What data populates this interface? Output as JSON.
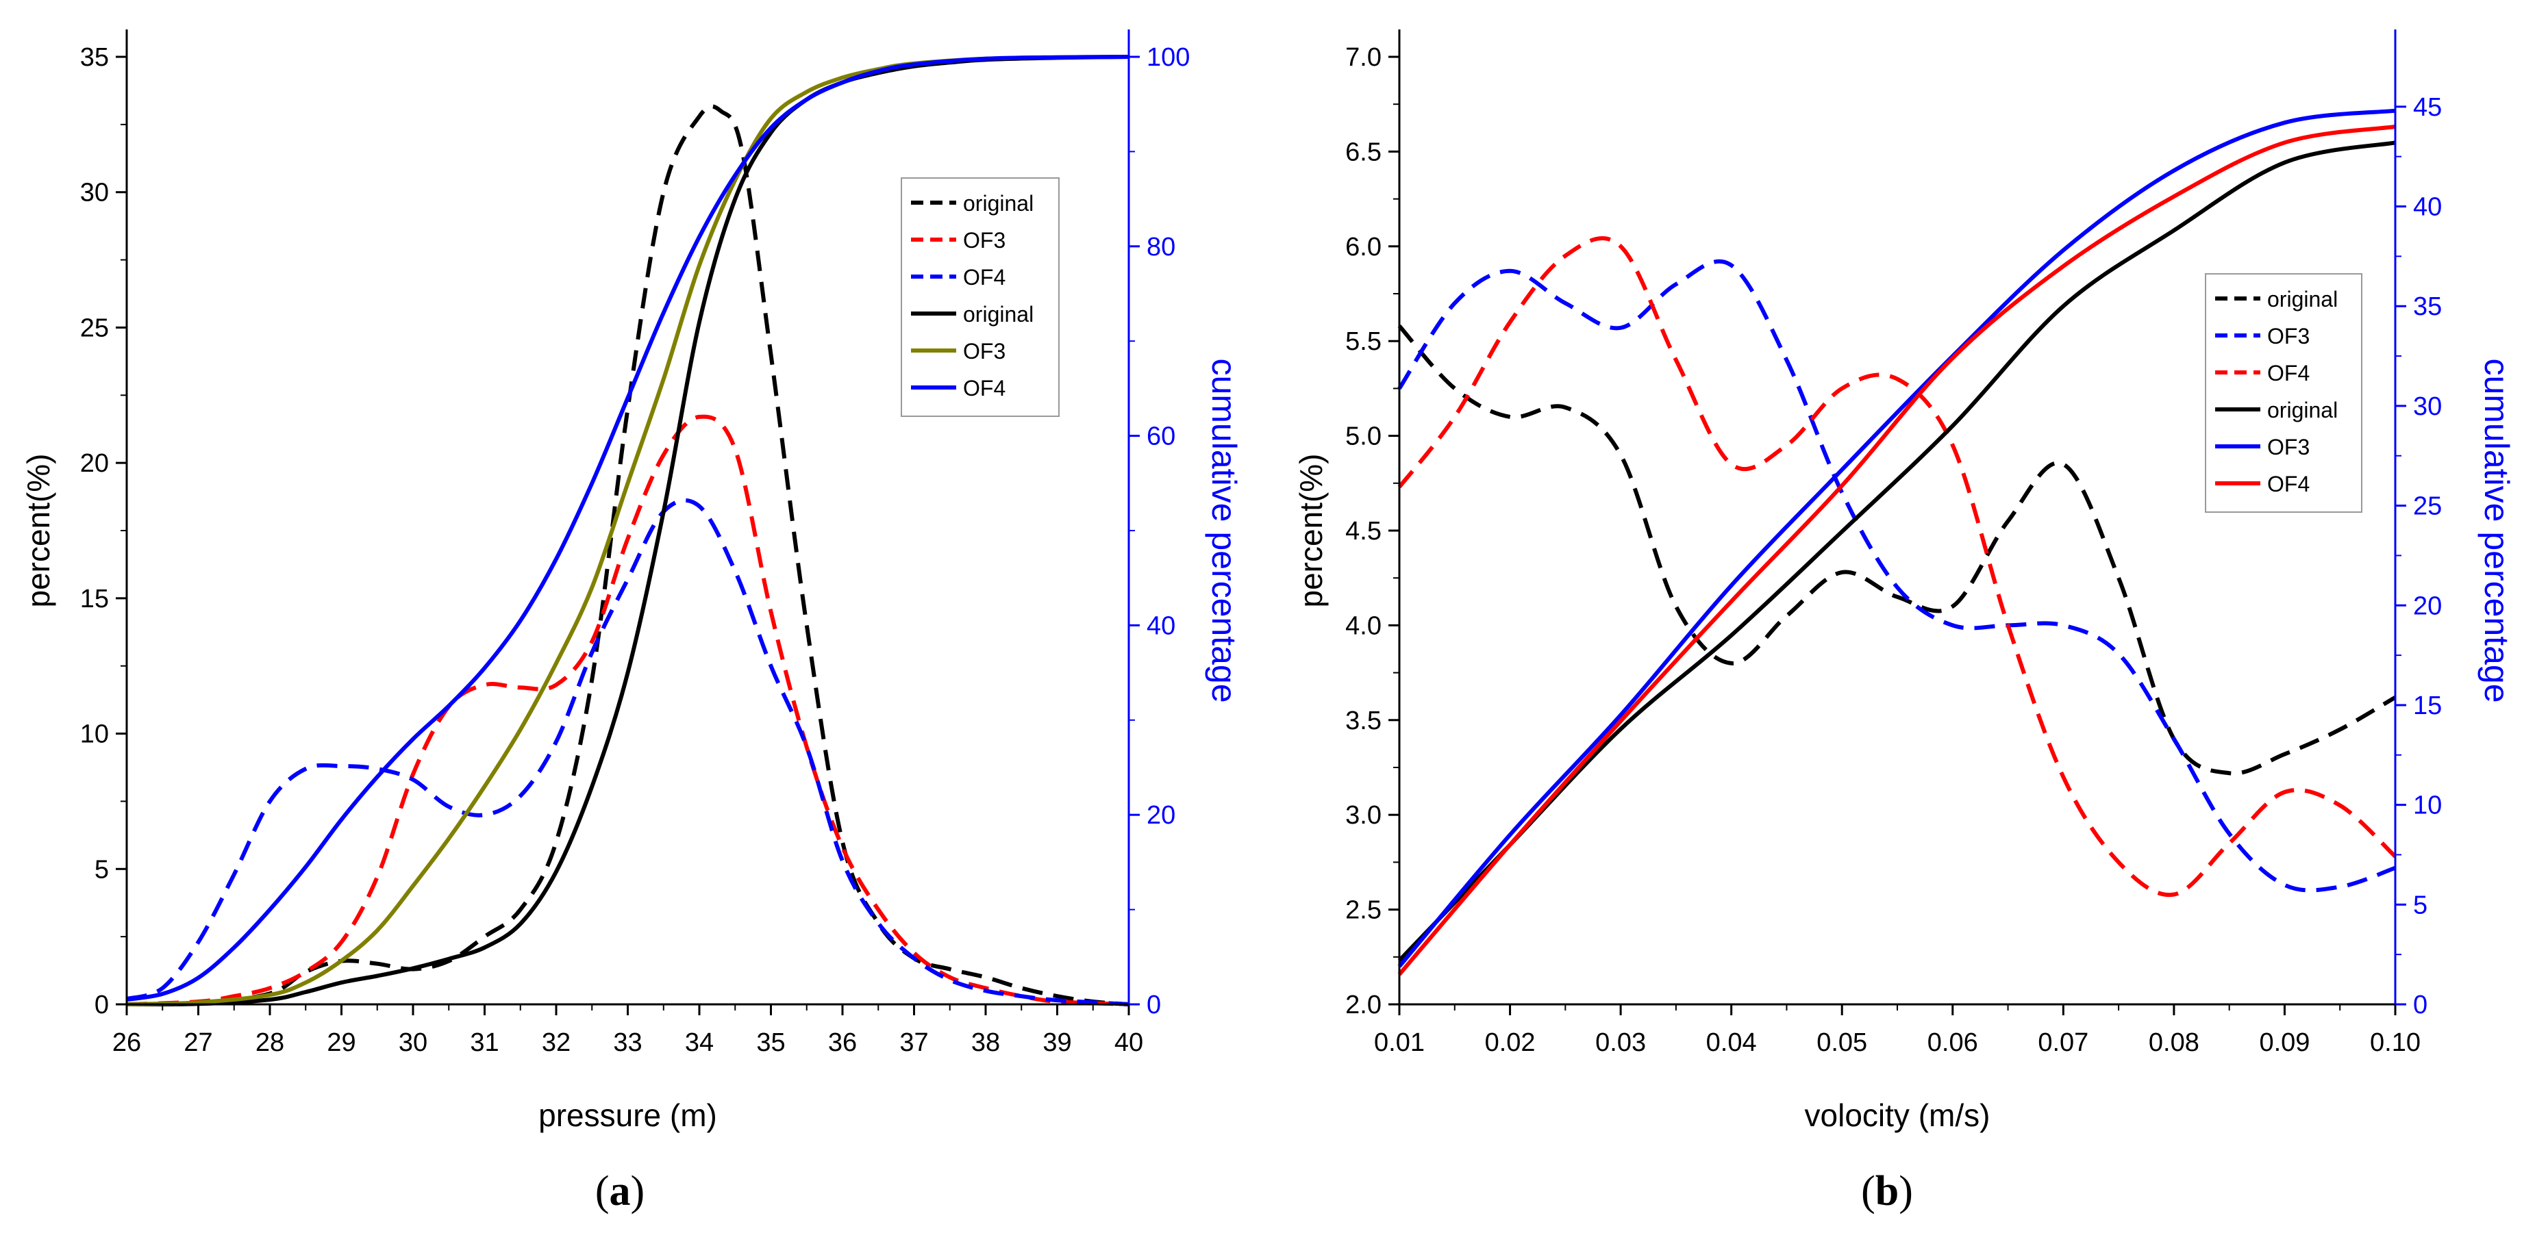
{
  "chart_data": [
    {
      "type": "line",
      "panel_label": "a",
      "xlabel": "pressure (m)",
      "ylabel": "percent(%)",
      "y2label": "cumulative percentage",
      "xlim": [
        26,
        40
      ],
      "ylim": [
        0,
        35
      ],
      "y2lim": [
        0,
        100
      ],
      "xticks": [
        26,
        27,
        28,
        29,
        30,
        31,
        32,
        33,
        34,
        35,
        36,
        37,
        38,
        39,
        40
      ],
      "yticks": [
        0,
        5,
        10,
        15,
        20,
        25,
        30,
        35
      ],
      "y2ticks": [
        0,
        20,
        40,
        60,
        80,
        100
      ],
      "legend_position": "upper-right",
      "series": [
        {
          "name": "original",
          "axis": "left",
          "style": "dashed",
          "color": "#000000",
          "x": [
            26,
            27,
            28,
            28.5,
            29,
            29.5,
            30,
            30.5,
            31,
            31.5,
            32,
            32.5,
            33,
            33.5,
            34,
            34.3,
            34.6,
            35,
            35.5,
            36,
            36.5,
            37,
            37.5,
            38,
            38.5,
            39,
            39.5,
            40
          ],
          "y": [
            0,
            0.05,
            0.4,
            1.2,
            1.6,
            1.5,
            1.3,
            1.6,
            2.5,
            3.5,
            6,
            12,
            22,
            30,
            32.8,
            33,
            31.5,
            24,
            14,
            6,
            3,
            1.7,
            1.3,
            1.0,
            0.6,
            0.3,
            0.1,
            0
          ]
        },
        {
          "name": "OF3",
          "axis": "left",
          "style": "dashed",
          "color": "#ff0000",
          "x": [
            26,
            27,
            27.5,
            28,
            28.5,
            29,
            29.5,
            30,
            30.5,
            31,
            31.5,
            32,
            32.5,
            33,
            33.5,
            34,
            34.5,
            35,
            35.5,
            36,
            36.5,
            37,
            37.5,
            38,
            38.5,
            39,
            40
          ],
          "y": [
            0,
            0.1,
            0.3,
            0.6,
            1.2,
            2.3,
            4.7,
            8.5,
            11.0,
            11.8,
            11.7,
            11.8,
            13.4,
            17.2,
            20.3,
            21.7,
            20.5,
            14.5,
            9.5,
            5.8,
            3.5,
            1.9,
            1.0,
            0.6,
            0.3,
            0.1,
            0
          ]
        },
        {
          "name": "OF4",
          "axis": "left",
          "style": "dashed",
          "color": "#0000ff",
          "x": [
            26,
            26.5,
            27,
            27.5,
            28,
            28.5,
            29,
            29.5,
            30,
            30.5,
            31,
            31.5,
            32,
            32.5,
            33,
            33.5,
            34,
            34.5,
            35,
            35.5,
            36,
            36.5,
            37,
            37.5,
            38,
            38.5,
            39,
            40
          ],
          "y": [
            0.2,
            0.6,
            2.3,
            4.8,
            7.5,
            8.7,
            8.8,
            8.7,
            8.3,
            7.3,
            7.0,
            7.7,
            9.7,
            13.0,
            15.7,
            18.2,
            18.4,
            16.0,
            12.5,
            9.5,
            5.3,
            3.0,
            1.7,
            0.9,
            0.5,
            0.3,
            0.15,
            0
          ]
        },
        {
          "name": "original",
          "axis": "right",
          "style": "solid",
          "color": "#000000",
          "x": [
            26,
            27,
            28,
            28.5,
            29,
            29.5,
            30,
            30.5,
            31,
            31.5,
            32,
            32.5,
            33,
            33.5,
            34,
            34.5,
            35,
            35.5,
            36,
            36.5,
            37,
            37.5,
            38,
            39,
            40
          ],
          "y": [
            0,
            0.05,
            0.5,
            1.3,
            2.3,
            3.0,
            3.8,
            4.8,
            6.0,
            8.5,
            14,
            23,
            35,
            52,
            72,
            85,
            92,
            95.5,
            97.3,
            98.3,
            99.0,
            99.4,
            99.7,
            99.9,
            100
          ]
        },
        {
          "name": "OF3",
          "axis": "right",
          "style": "solid",
          "color": "#808000",
          "x": [
            26,
            27,
            28,
            28.5,
            29,
            29.5,
            30,
            30.5,
            31,
            31.5,
            32,
            32.5,
            33,
            33.5,
            34,
            34.5,
            35,
            35.5,
            36,
            36.5,
            37,
            38,
            39,
            40
          ],
          "y": [
            0,
            0.2,
            1.0,
            2.3,
            4.6,
            7.8,
            12.5,
            17.5,
            23,
            29,
            36,
            44,
            55,
            66,
            78,
            87,
            93.5,
            96.3,
            97.8,
            98.7,
            99.3,
            99.8,
            99.95,
            100
          ]
        },
        {
          "name": "OF4",
          "axis": "right",
          "style": "solid",
          "color": "#0000ff",
          "x": [
            26,
            26.5,
            27,
            27.5,
            28,
            28.5,
            29,
            29.5,
            30,
            30.5,
            31,
            31.5,
            32,
            32.5,
            33,
            33.5,
            34,
            34.5,
            35,
            35.5,
            36,
            36.5,
            37,
            38,
            39,
            40
          ],
          "y": [
            0.5,
            1.1,
            2.8,
            6.0,
            10.0,
            14.5,
            19.5,
            24.0,
            28.0,
            31.5,
            35.5,
            40.5,
            47.0,
            55.0,
            64.0,
            73.0,
            81.0,
            87.5,
            92.5,
            95.5,
            97.3,
            98.5,
            99.2,
            99.8,
            99.95,
            100
          ]
        }
      ]
    },
    {
      "type": "line",
      "panel_label": "b",
      "xlabel": "volocity (m/s)",
      "ylabel": "percent(%)",
      "y2label": "cumulative percentage",
      "xlim": [
        0.01,
        0.1
      ],
      "ylim": [
        2.0,
        7.0
      ],
      "y2lim": [
        0,
        47.5
      ],
      "xticks": [
        "0.01",
        "0.02",
        "0.03",
        "0.04",
        "0.05",
        "0.06",
        "0.07",
        "0.08",
        "0.09",
        "0.10"
      ],
      "yticks": [
        "2.0",
        "2.5",
        "3.0",
        "3.5",
        "4.0",
        "4.5",
        "5.0",
        "5.5",
        "6.0",
        "6.5",
        "7.0"
      ],
      "y2ticks": [
        0,
        5,
        10,
        15,
        20,
        25,
        30,
        35,
        40,
        45
      ],
      "legend_position": "upper-right",
      "series": [
        {
          "name": "original",
          "axis": "left",
          "style": "dashed",
          "color": "#000000",
          "x": [
            0.01,
            0.015,
            0.02,
            0.025,
            0.03,
            0.035,
            0.04,
            0.045,
            0.05,
            0.055,
            0.06,
            0.065,
            0.07,
            0.075,
            0.08,
            0.085,
            0.09,
            0.095,
            0.1
          ],
          "y": [
            5.58,
            5.25,
            5.1,
            5.15,
            4.9,
            4.1,
            3.8,
            4.05,
            4.28,
            4.15,
            4.1,
            4.55,
            4.85,
            4.25,
            3.4,
            3.22,
            3.32,
            3.45,
            3.62
          ]
        },
        {
          "name": "OF3",
          "axis": "left",
          "style": "dashed",
          "color": "#0000ff",
          "x": [
            0.01,
            0.015,
            0.02,
            0.025,
            0.03,
            0.035,
            0.04,
            0.045,
            0.05,
            0.055,
            0.06,
            0.065,
            0.07,
            0.075,
            0.08,
            0.085,
            0.09,
            0.095,
            0.1
          ],
          "y": [
            5.25,
            5.7,
            5.87,
            5.7,
            5.57,
            5.8,
            5.9,
            5.4,
            4.7,
            4.2,
            4.0,
            4.0,
            4.0,
            3.85,
            3.4,
            2.9,
            2.63,
            2.62,
            2.72
          ]
        },
        {
          "name": "OF4",
          "axis": "left",
          "style": "dashed",
          "color": "#ff0000",
          "x": [
            0.01,
            0.015,
            0.02,
            0.025,
            0.03,
            0.035,
            0.04,
            0.045,
            0.05,
            0.055,
            0.06,
            0.065,
            0.07,
            0.075,
            0.08,
            0.085,
            0.09,
            0.095,
            0.1
          ],
          "y": [
            4.73,
            5.1,
            5.6,
            5.95,
            6.0,
            5.4,
            4.85,
            4.95,
            5.25,
            5.3,
            4.95,
            4.0,
            3.2,
            2.75,
            2.58,
            2.85,
            3.12,
            3.05,
            2.78
          ]
        },
        {
          "name": "original",
          "axis": "right",
          "style": "solid",
          "color": "#000000",
          "x": [
            0.01,
            0.02,
            0.03,
            0.04,
            0.05,
            0.06,
            0.07,
            0.08,
            0.09,
            0.1
          ],
          "y": [
            2.2,
            8.0,
            13.8,
            18.5,
            23.7,
            29.0,
            35.0,
            38.8,
            42.2,
            43.2
          ]
        },
        {
          "name": "OF3",
          "axis": "right",
          "style": "solid",
          "color": "#0000ff",
          "x": [
            0.01,
            0.02,
            0.03,
            0.04,
            0.05,
            0.06,
            0.07,
            0.08,
            0.09,
            0.1
          ],
          "y": [
            1.9,
            8.5,
            14.5,
            21.0,
            26.8,
            32.5,
            37.8,
            41.8,
            44.2,
            44.8
          ]
        },
        {
          "name": "OF4",
          "axis": "right",
          "style": "solid",
          "color": "#ff0000",
          "x": [
            0.01,
            0.02,
            0.03,
            0.04,
            0.05,
            0.06,
            0.07,
            0.08,
            0.09,
            0.1
          ],
          "y": [
            1.5,
            8.0,
            14.2,
            20.2,
            26.0,
            32.4,
            37.0,
            40.5,
            43.2,
            44.0
          ]
        }
      ]
    }
  ]
}
